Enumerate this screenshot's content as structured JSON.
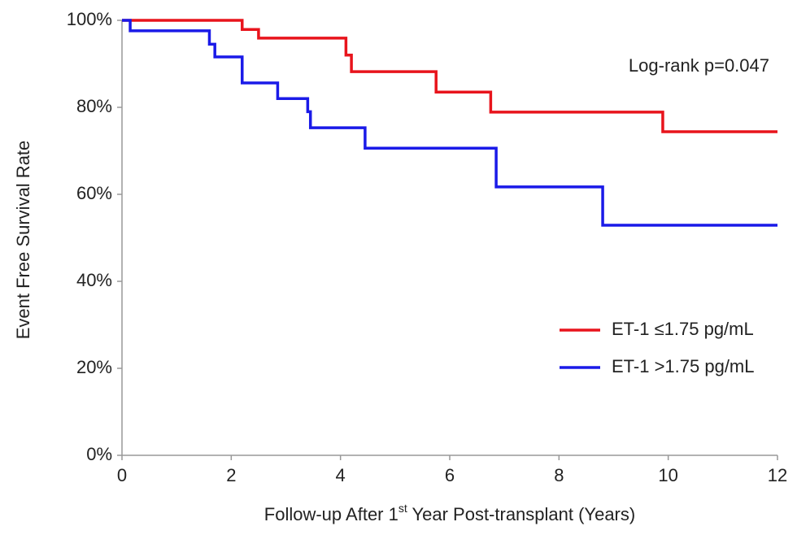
{
  "chart_data": {
    "type": "step",
    "y_label": "Event Free Survival Rate",
    "x_label_parts": [
      "Follow-up After 1",
      "st",
      " Year Post-transplant (Years)"
    ],
    "annotation": "Log-rank p=0.047",
    "xlim": [
      0,
      12
    ],
    "xticks": [
      0,
      2,
      4,
      6,
      8,
      10,
      12
    ],
    "ylim": [
      0,
      100
    ],
    "yticks": [
      {
        "value": 0,
        "label": "0%"
      },
      {
        "value": 20,
        "label": "20%"
      },
      {
        "value": 40,
        "label": "40%"
      },
      {
        "value": 60,
        "label": "60%"
      },
      {
        "value": 80,
        "label": "80%"
      },
      {
        "value": 100,
        "label": "100%"
      }
    ],
    "legend": "right",
    "series": [
      {
        "name": "ET-1 ≤1.75 pg/mL",
        "color": "#e8141c",
        "x": [
          0,
          2.2,
          2.5,
          4.1,
          4.2,
          5.75,
          6.75,
          9.9,
          12
        ],
        "values": [
          100,
          97.9,
          95.9,
          92,
          88.2,
          83.5,
          78.9,
          74.4,
          74.4
        ]
      },
      {
        "name": "ET-1 >1.75 pg/mL",
        "color": "#1a1ae8",
        "x": [
          0,
          0.15,
          1.6,
          1.7,
          2.2,
          2.85,
          3.4,
          3.45,
          4.45,
          6.85,
          8.8,
          12
        ],
        "values": [
          100,
          97.6,
          94.5,
          91.6,
          85.6,
          82,
          79,
          75.3,
          70.6,
          61.7,
          52.9,
          52.9
        ]
      }
    ]
  }
}
